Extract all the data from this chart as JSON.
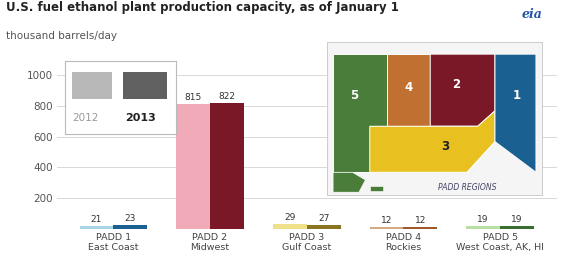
{
  "title": "U.S. fuel ethanol plant production capacity, as of January 1",
  "subtitle": "thousand barrels/day",
  "categories": [
    "PADD 1\nEast Coast",
    "PADD 2\nMidwest",
    "PADD 3\nGulf Coast",
    "PADD 4\nRockies",
    "PADD 5\nWest Coast, AK, HI"
  ],
  "values_2012": [
    21,
    815,
    29,
    12,
    19
  ],
  "values_2013": [
    23,
    822,
    27,
    12,
    19
  ],
  "bar_colors_2012": [
    "#a8d4e8",
    "#f0aab8",
    "#f0e08a",
    "#d4a882",
    "#b8e0a0"
  ],
  "bar_colors_2013": [
    "#1a6090",
    "#7a1828",
    "#8b7320",
    "#a05828",
    "#3a6e30"
  ],
  "ylim": [
    0,
    1000
  ],
  "yticks": [
    0,
    200,
    400,
    600,
    800,
    1000
  ],
  "background_color": "#ffffff",
  "grid_color": "#d8d8d8",
  "title_color": "#222222",
  "subtitle_color": "#555555",
  "label_2012": "2012",
  "label_2013": "2013",
  "legend_2012_color": "#b8b8b8",
  "legend_2013_color": "#606060",
  "map_region_colors": {
    "1": "#1a6090",
    "2": "#7a1828",
    "3": "#e8c020",
    "4": "#c07030",
    "5": "#4a7c3a"
  },
  "padd_label_color": "#444466"
}
